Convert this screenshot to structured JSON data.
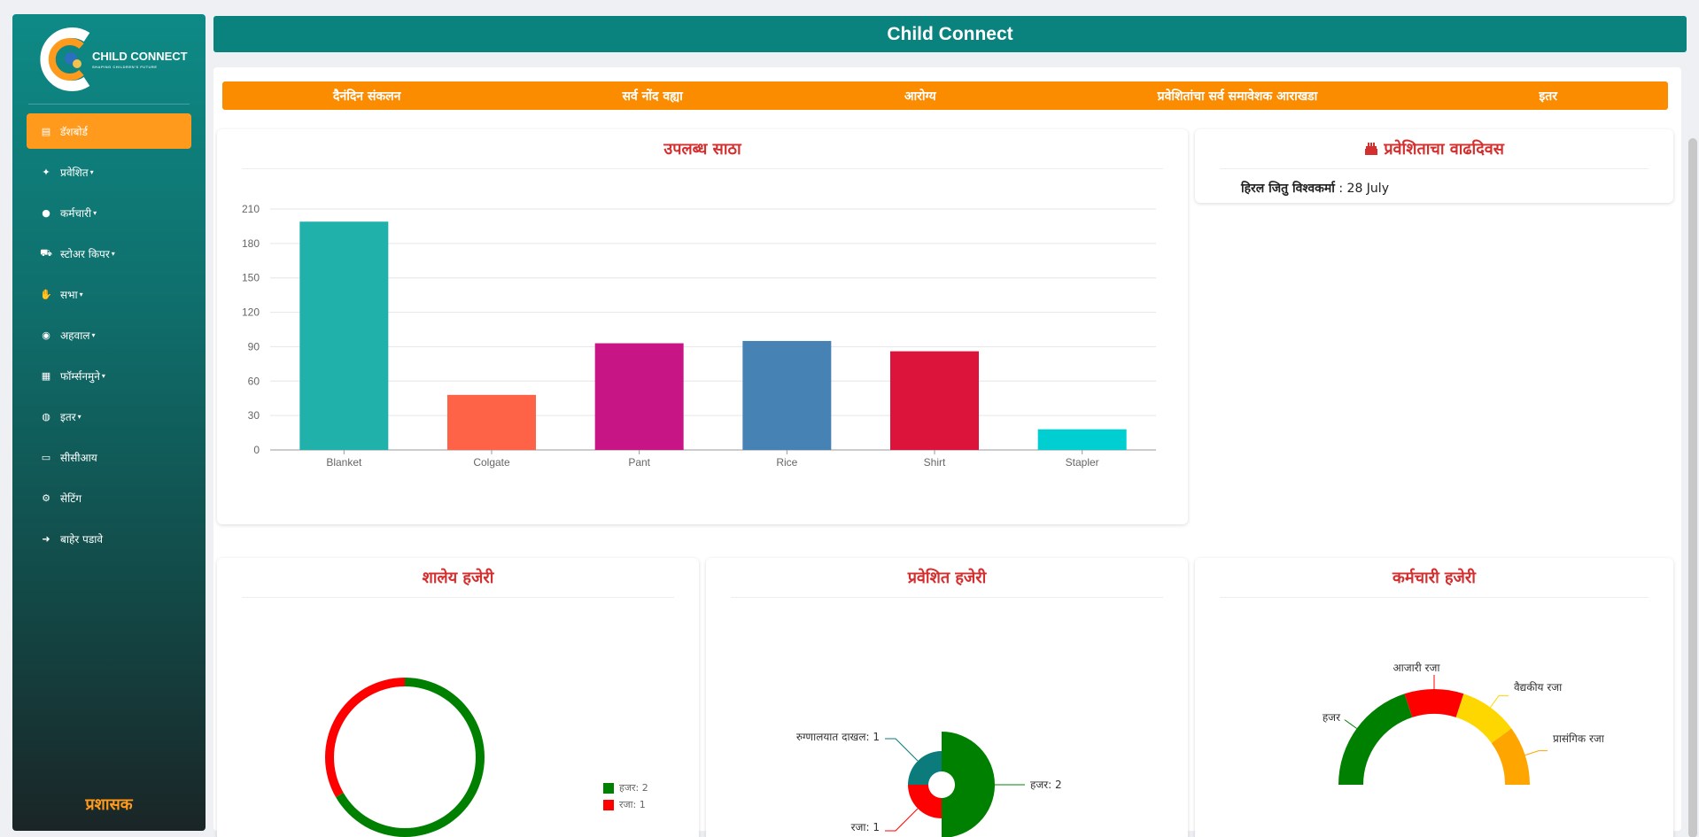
{
  "app": {
    "title": "Child Connect",
    "logo_text": "CHILD CONNECT",
    "logo_subtitle": "SHAPING CHILDREN'S FUTURE",
    "role": "प्रशासक"
  },
  "sidebar": {
    "items": [
      {
        "label": "डॅशबोर्ड",
        "icon": "dashboard-icon",
        "glyph": "▤",
        "caret": false,
        "active": true
      },
      {
        "label": "प्रवेशित",
        "icon": "child-icon",
        "glyph": "✦",
        "caret": true,
        "active": false
      },
      {
        "label": "कर्मचारी",
        "icon": "user-icon",
        "glyph": "●",
        "caret": true,
        "active": false
      },
      {
        "label": "स्टोअर किपर",
        "icon": "cart-icon",
        "glyph": "⛟",
        "caret": true,
        "active": false
      },
      {
        "label": "सभा",
        "icon": "handshake-icon",
        "glyph": "✋",
        "caret": true,
        "active": false
      },
      {
        "label": "अहवाल",
        "icon": "report-icon",
        "glyph": "◉",
        "caret": true,
        "active": false
      },
      {
        "label": "फॉर्म्सनमुने",
        "icon": "form-icon",
        "glyph": "▦",
        "caret": true,
        "active": false
      },
      {
        "label": "इतर",
        "icon": "other-icon",
        "glyph": "◍",
        "caret": true,
        "active": false
      },
      {
        "label": "सीसीआय",
        "icon": "id-card-icon",
        "glyph": "▭",
        "caret": false,
        "active": false
      },
      {
        "label": "सेटिंग",
        "icon": "gear-icon",
        "glyph": "⚙",
        "caret": false,
        "active": false
      },
      {
        "label": "बाहेर पडावे",
        "icon": "logout-icon",
        "glyph": "➜",
        "caret": false,
        "active": false
      }
    ]
  },
  "tabs": [
    "दैनंदिन संकलन",
    "सर्व नोंद वह्या",
    "आरोग्य",
    "प्रवेशितांचा सर्व समावेशक आराखडा",
    "इतर"
  ],
  "stock_card": {
    "title": "उपलब्ध साठा"
  },
  "birthday_card": {
    "title": "प्रवेशिताचा वाढदिवस",
    "icon": "cake-icon",
    "entries": [
      {
        "name": "हिरल जितु विश्वकर्मा",
        "date": " : 28 July"
      }
    ]
  },
  "school_attendance": {
    "title": "शालेय हजेरी",
    "legend": [
      {
        "label": "हजर: 2",
        "color": "#008000"
      },
      {
        "label": "रजा: 1",
        "color": "#ff0000"
      }
    ]
  },
  "admitted_attendance": {
    "title": "प्रवेशित हजेरी",
    "labels": {
      "hospital": "रुग्णालयात दाखल: 1",
      "present": "हजर: 2",
      "leave": "रजा: 1"
    }
  },
  "staff_attendance": {
    "title": "कर्मचारी हजेरी",
    "labels": {
      "present": "हजर",
      "sick": "आजारी रजा",
      "medical": "वैद्यकीय रजा",
      "casual": "प्रासंगिक रजा"
    }
  },
  "chart_data": [
    {
      "type": "bar",
      "title": "उपलब्ध साठा",
      "categories": [
        "Blanket",
        "Colgate",
        "Pant",
        "Rice",
        "Shirt",
        "Stapler"
      ],
      "values": [
        199,
        48,
        93,
        95,
        86,
        18
      ],
      "colors": [
        "#20b2aa",
        "#ff6347",
        "#c71585",
        "#4682b4",
        "#dc143c",
        "#00ced1"
      ],
      "yticks": [
        0,
        30,
        60,
        90,
        120,
        150,
        180,
        210
      ],
      "ylim": [
        0,
        210
      ],
      "grid": true
    },
    {
      "type": "pie",
      "title": "शालेय हजेरी",
      "categories": [
        "हजर",
        "रजा"
      ],
      "values": [
        2,
        1
      ],
      "colors": [
        "#008000",
        "#ff0000"
      ]
    },
    {
      "type": "pie",
      "title": "प्रवेशित हजेरी",
      "categories": [
        "हजर",
        "रजा",
        "रुग्णालयात दाखल"
      ],
      "values": [
        2,
        1,
        1
      ],
      "colors": [
        "#008000",
        "#ff0000",
        "#0b7b7b"
      ]
    },
    {
      "type": "pie",
      "title": "कर्मचारी हजेरी",
      "categories": [
        "हजर",
        "आजारी रजा",
        "वैद्यकीय रजा",
        "प्रासंगिक रजा"
      ],
      "values": [
        2,
        1,
        1,
        1
      ],
      "colors": [
        "#008000",
        "#ff0000",
        "#ffd700",
        "#ffa500"
      ]
    }
  ]
}
